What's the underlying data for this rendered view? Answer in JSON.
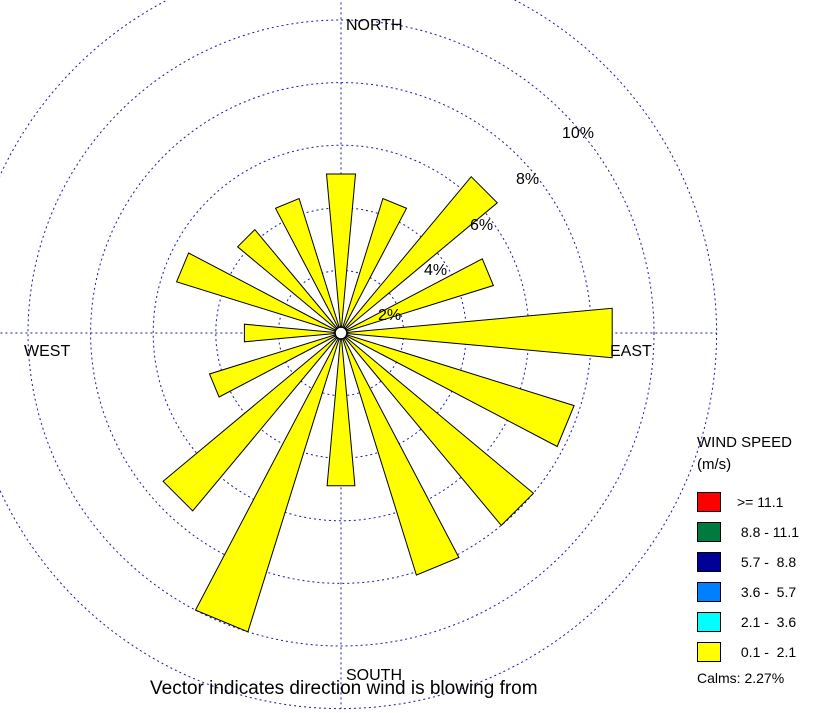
{
  "chart_data": {
    "type": "wind-rose",
    "direction_labels": {
      "north": "NORTH",
      "east": "EAST",
      "south": "SOUTH",
      "west": "WEST"
    },
    "ring_labels": [
      "2%",
      "4%",
      "6%",
      "8%",
      "10%"
    ],
    "ring_values": [
      2,
      4,
      6,
      8,
      10,
      12
    ],
    "directions_deg": [
      0,
      22.5,
      45,
      67.5,
      90,
      112.5,
      135,
      157.5,
      180,
      202.5,
      225,
      247.5,
      270,
      292.5,
      315,
      337.5
    ],
    "frequencies_pct": [
      5.1,
      4.5,
      6.5,
      5.1,
      8.7,
      7.8,
      8.0,
      8.1,
      4.9,
      10.0,
      7.4,
      4.4,
      3.1,
      5.5,
      4.3,
      4.5
    ],
    "speed_bin_of_all_petals": "0.1 - 2.1",
    "petal_color": "#ffff00"
  },
  "legend": {
    "title": "WIND SPEED",
    "units": "(m/s)",
    "items": [
      {
        "label": ">= 11.1",
        "color": "#ff0000"
      },
      {
        "label": " 8.8 - 11.1",
        "color": "#007a3d"
      },
      {
        "label": " 5.7 -  8.8",
        "color": "#000099"
      },
      {
        "label": " 3.6 -  5.7",
        "color": "#0080ff"
      },
      {
        "label": " 2.1 -  3.6",
        "color": "#00ffff"
      },
      {
        "label": " 0.1 -  2.1",
        "color": "#ffff00"
      }
    ],
    "calms": "Calms: 2.27%"
  },
  "footnote": "Vector indicates direction wind is blowing from"
}
